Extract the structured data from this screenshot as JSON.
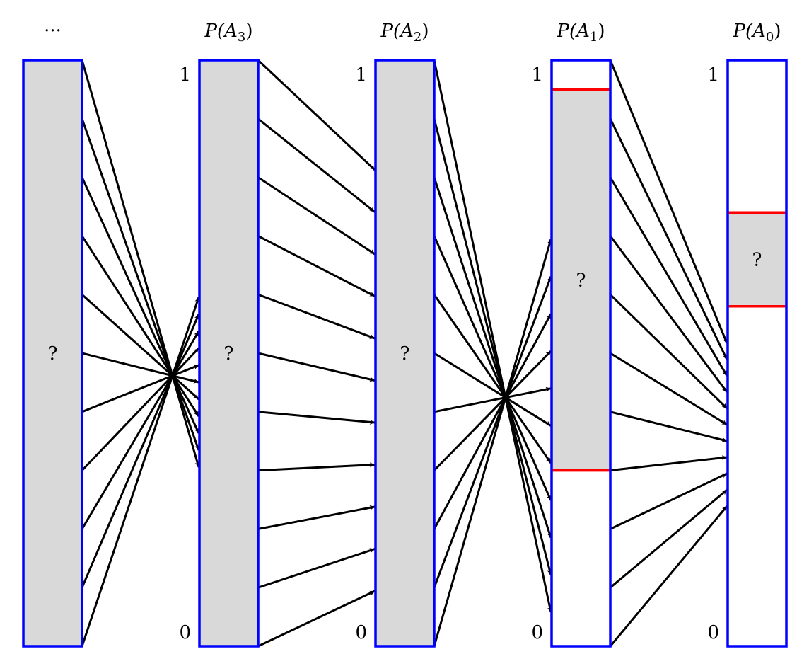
{
  "columns": [
    {
      "title": "···",
      "top_label": "",
      "bottom_label": "",
      "inner": "?",
      "shaded": [
        0,
        1
      ],
      "highlight": false
    },
    {
      "title": "P(A3)",
      "title_base": "P(A",
      "title_sub": "3",
      "top_label": "1",
      "bottom_label": "0",
      "inner": "?",
      "shaded": [
        0,
        1
      ],
      "highlight": false
    },
    {
      "title": "P(A2)",
      "title_base": "P(A",
      "title_sub": "2",
      "top_label": "1",
      "bottom_label": "0",
      "inner": "?",
      "shaded": [
        0,
        1
      ],
      "highlight": false
    },
    {
      "title": "P(A1)",
      "title_base": "P(A",
      "title_sub": "1",
      "top_label": "1",
      "bottom_label": "0",
      "inner": "?",
      "shaded": [
        0.05,
        0.7
      ],
      "highlight": true
    },
    {
      "title": "P(A0)",
      "title_base": "P(A",
      "title_sub": "0",
      "top_label": "1",
      "bottom_label": "0",
      "inner": "?",
      "shaded": [
        0.26,
        0.42
      ],
      "highlight": true
    }
  ],
  "arrows_per_link": 11,
  "colors": {
    "border": "#0000ff",
    "fill": "#d9d9d9",
    "range": "#ff0000",
    "arrow": "#000000"
  }
}
